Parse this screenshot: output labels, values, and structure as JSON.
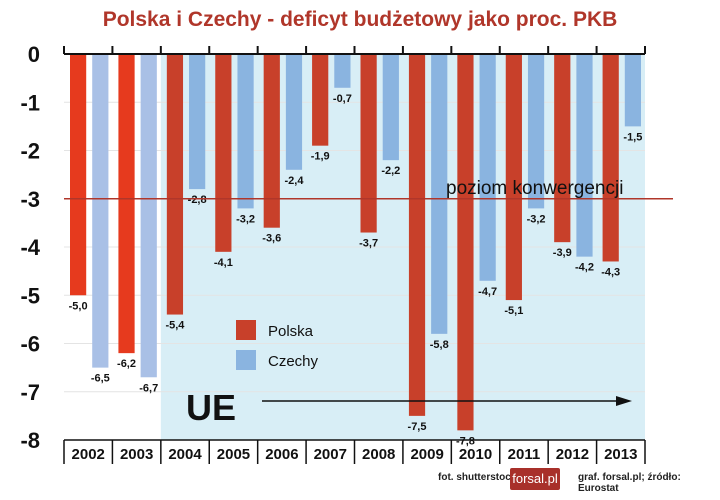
{
  "chart_data": {
    "type": "bar",
    "title": "Polska i Czechy - deficyt budżetowy jako proc. PKB",
    "categories": [
      "2002",
      "2003",
      "2004",
      "2005",
      "2006",
      "2007",
      "2008",
      "2009",
      "2010",
      "2011",
      "2012",
      "2013"
    ],
    "series": [
      {
        "name": "Polska",
        "values": [
          -5.0,
          -6.2,
          -5.4,
          -4.1,
          -3.6,
          -1.9,
          -3.7,
          -7.5,
          -7.8,
          -5.1,
          -3.9,
          -4.3
        ],
        "color": "#c8402a",
        "color_pre_eu": "#e63a1e"
      },
      {
        "name": "Czechy",
        "values": [
          -6.5,
          -6.7,
          -2.8,
          -3.2,
          -2.4,
          -0.7,
          -2.2,
          -5.8,
          -4.7,
          -3.2,
          -4.2,
          -1.5
        ],
        "color": "#8ab4e0",
        "color_pre_eu": "#a9c0e6"
      }
    ],
    "data_labels": [
      [
        "-5,0",
        "-6,5"
      ],
      [
        "-6,2",
        "-6,7"
      ],
      [
        "-5,4",
        "-2,8"
      ],
      [
        "-4,1",
        "-3,2"
      ],
      [
        "-3,6",
        "-2,4"
      ],
      [
        "-1,9",
        "-0,7"
      ],
      [
        "-3,7",
        "-2,2"
      ],
      [
        "-7,5",
        "-5,8"
      ],
      [
        "-7,8",
        "-4,7"
      ],
      [
        "-5,1",
        "-3,2"
      ],
      [
        "-3,9",
        "-4,2"
      ],
      [
        "-4,3",
        "-1,5"
      ]
    ],
    "ylim": [
      -8,
      0
    ],
    "yticks": [
      "0",
      "-1",
      "-2",
      "-3",
      "-4",
      "-5",
      "-6",
      "-7",
      "-8"
    ],
    "reference_line": {
      "value": -3,
      "label": "poziom konwergencji",
      "color": "#b0362a"
    },
    "eu_period": {
      "from": "2004",
      "label": "UE",
      "color": "#d8eef6"
    },
    "legend_placement": "center-left",
    "grid": true
  },
  "footer": {
    "photo": "fot. shutterstock",
    "logo": "forsal.pl",
    "source": "graf. forsal.pl;  źródło: Eurostat"
  }
}
